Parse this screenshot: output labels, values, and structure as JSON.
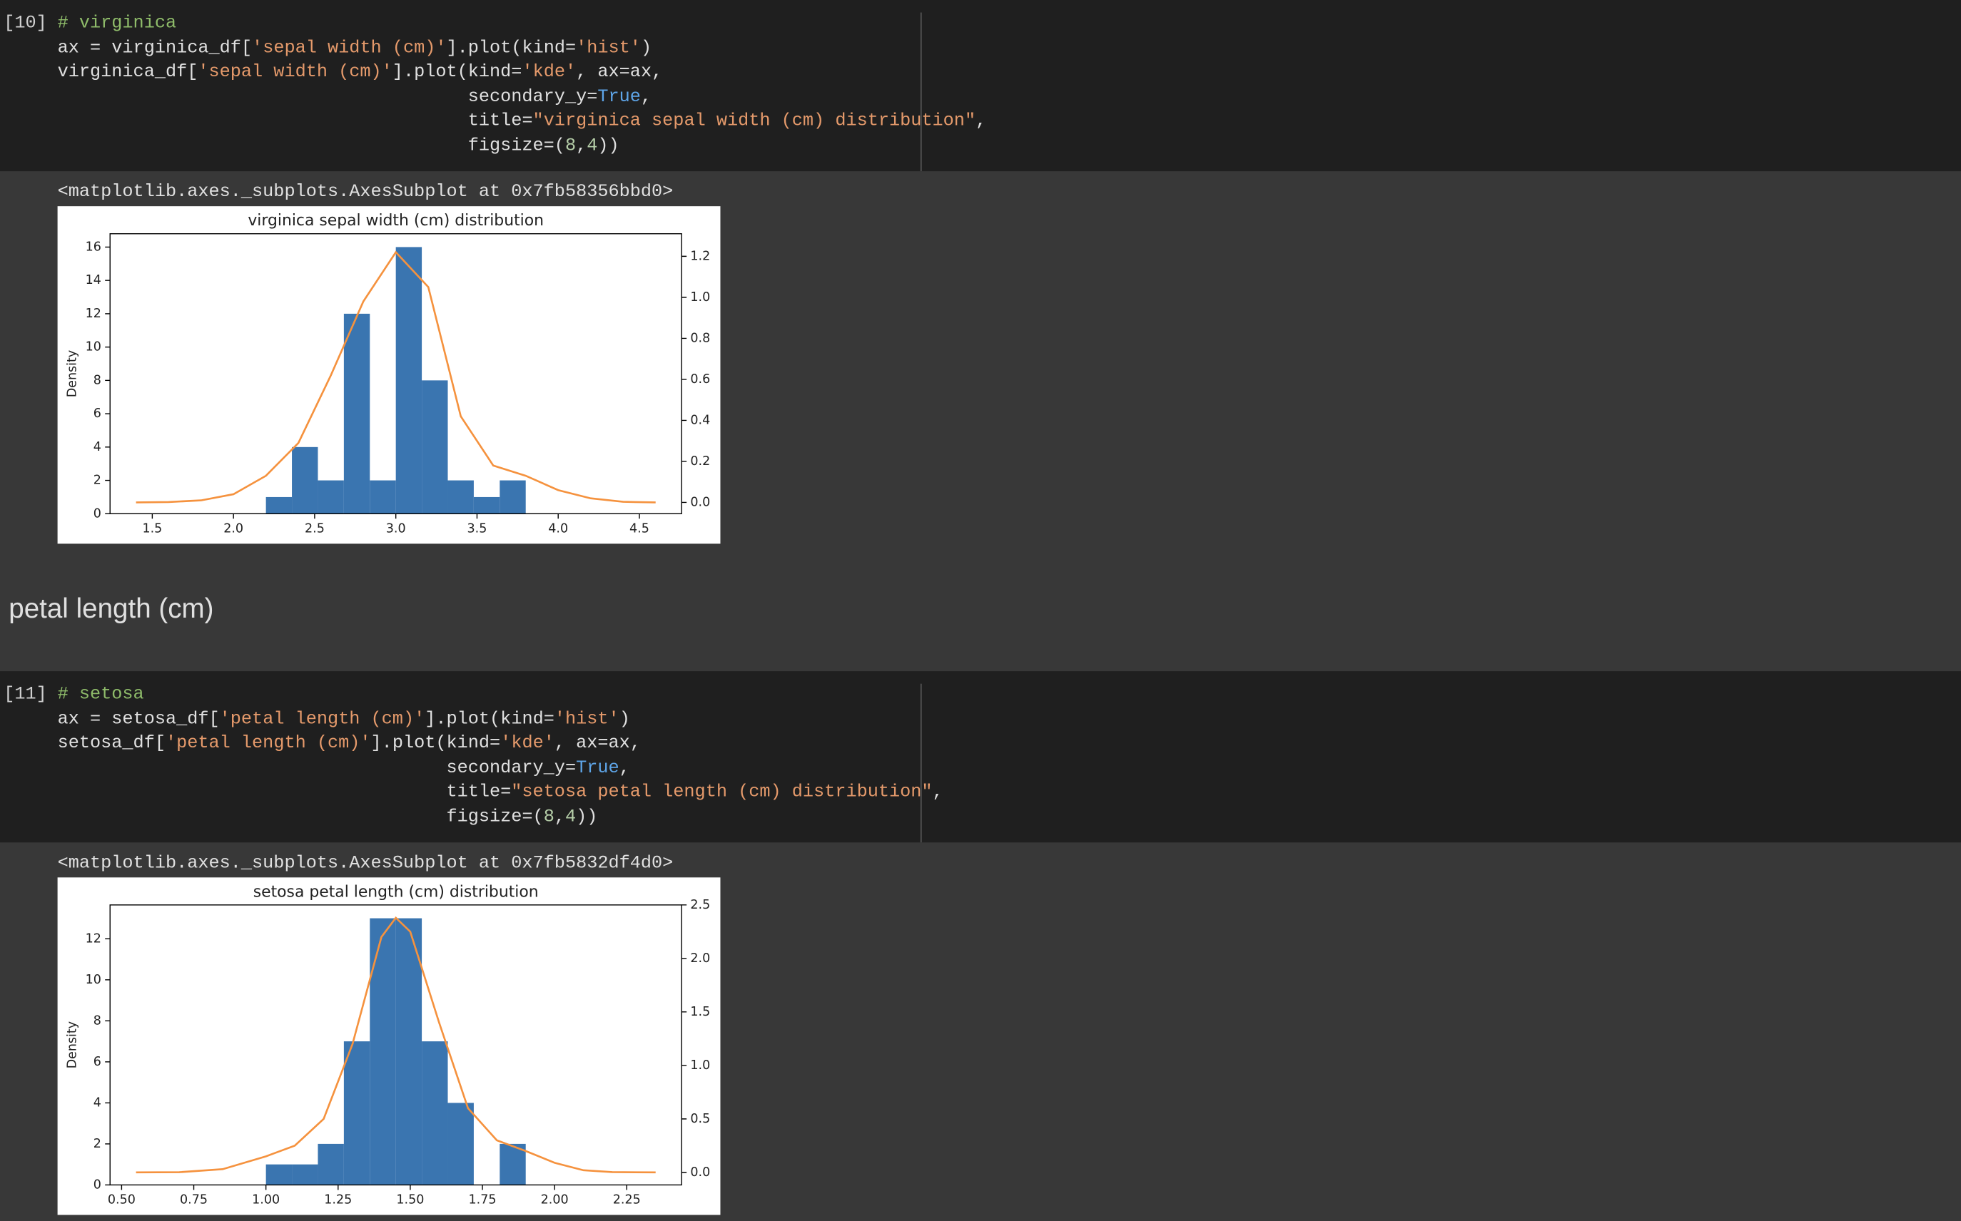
{
  "cells": [
    {
      "prompt": "[10]",
      "lines": [
        [
          {
            "text": "# virginica",
            "color": "#8fbc6a"
          }
        ],
        [
          {
            "text": "ax = virginica_df[",
            "color": "#e0e0e0"
          },
          {
            "text": "'sepal width (cm)'",
            "color": "#e59a6b"
          },
          {
            "text": "].plot(kind=",
            "color": "#e0e0e0"
          },
          {
            "text": "'hist'",
            "color": "#e59a6b"
          },
          {
            "text": ")",
            "color": "#e0e0e0"
          }
        ],
        [
          {
            "text": "virginica_df[",
            "color": "#e0e0e0"
          },
          {
            "text": "'sepal width (cm)'",
            "color": "#e59a6b"
          },
          {
            "text": "].plot(kind=",
            "color": "#e0e0e0"
          },
          {
            "text": "'kde'",
            "color": "#e59a6b"
          },
          {
            "text": ", ax=ax,",
            "color": "#e0e0e0"
          }
        ],
        [
          {
            "text": "                                      secondary_y=",
            "color": "#e0e0e0"
          },
          {
            "text": "True",
            "color": "#5ea5e8"
          },
          {
            "text": ",",
            "color": "#e0e0e0"
          }
        ],
        [
          {
            "text": "                                      title=",
            "color": "#e0e0e0"
          },
          {
            "text": "\"virginica sepal width (cm) distribution\"",
            "color": "#e59a6b"
          },
          {
            "text": ",",
            "color": "#e0e0e0"
          }
        ],
        [
          {
            "text": "                                      figsize=(",
            "color": "#e0e0e0"
          },
          {
            "text": "8",
            "color": "#b5cea8"
          },
          {
            "text": ",",
            "color": "#e0e0e0"
          },
          {
            "text": "4",
            "color": "#b5cea8"
          },
          {
            "text": "))",
            "color": "#e0e0e0"
          }
        ]
      ],
      "output": "<matplotlib.axes._subplots.AxesSubplot at 0x7fb58356bbd0>"
    },
    {
      "prompt": "[11]",
      "lines": [
        [
          {
            "text": "# setosa",
            "color": "#8fbc6a"
          }
        ],
        [
          {
            "text": "ax = setosa_df[",
            "color": "#e0e0e0"
          },
          {
            "text": "'petal length (cm)'",
            "color": "#e59a6b"
          },
          {
            "text": "].plot(kind=",
            "color": "#e0e0e0"
          },
          {
            "text": "'hist'",
            "color": "#e59a6b"
          },
          {
            "text": ")",
            "color": "#e0e0e0"
          }
        ],
        [
          {
            "text": "setosa_df[",
            "color": "#e0e0e0"
          },
          {
            "text": "'petal length (cm)'",
            "color": "#e59a6b"
          },
          {
            "text": "].plot(kind=",
            "color": "#e0e0e0"
          },
          {
            "text": "'kde'",
            "color": "#e59a6b"
          },
          {
            "text": ", ax=ax,",
            "color": "#e0e0e0"
          }
        ],
        [
          {
            "text": "                                    secondary_y=",
            "color": "#e0e0e0"
          },
          {
            "text": "True",
            "color": "#5ea5e8"
          },
          {
            "text": ",",
            "color": "#e0e0e0"
          }
        ],
        [
          {
            "text": "                                    title=",
            "color": "#e0e0e0"
          },
          {
            "text": "\"setosa petal length (cm) distribution\"",
            "color": "#e59a6b"
          },
          {
            "text": ",",
            "color": "#e0e0e0"
          }
        ],
        [
          {
            "text": "                                    figsize=(",
            "color": "#e0e0e0"
          },
          {
            "text": "8",
            "color": "#b5cea8"
          },
          {
            "text": ",",
            "color": "#e0e0e0"
          },
          {
            "text": "4",
            "color": "#b5cea8"
          },
          {
            "text": "))",
            "color": "#e0e0e0"
          }
        ]
      ],
      "output": "<matplotlib.axes._subplots.AxesSubplot at 0x7fb5832df4d0>"
    }
  ],
  "heading": "petal length (cm)",
  "chart_data": [
    {
      "type": "histogram",
      "title": "virginica sepal width (cm) distribution",
      "y_label": "Density",
      "bins": [
        2.2,
        2.36,
        2.52,
        2.68,
        2.84,
        3.0,
        3.16,
        3.32,
        3.48,
        3.64,
        3.8
      ],
      "counts": [
        1,
        4,
        2,
        12,
        2,
        16,
        8,
        2,
        1,
        2
      ],
      "color": "#3a75b0",
      "series": [
        {
          "color": "#f5923e",
          "axis": "y2",
          "x": [
            1.4,
            1.6,
            1.8,
            2.0,
            2.2,
            2.4,
            2.6,
            2.8,
            3.0,
            3.2,
            3.4,
            3.6,
            3.8,
            4.0,
            4.2,
            4.4,
            4.6
          ],
          "values": [
            0.0,
            0.002,
            0.01,
            0.04,
            0.13,
            0.29,
            0.62,
            0.98,
            1.22,
            1.05,
            0.42,
            0.18,
            0.13,
            0.06,
            0.02,
            0.003,
            0.0
          ]
        }
      ],
      "xlim": [
        1.24,
        4.76
      ],
      "xticks": [
        1.5,
        {
          "value": 2,
          "label": "2.0"
        },
        2.5,
        {
          "value": 3,
          "label": "3.0"
        },
        3.5,
        {
          "value": 4,
          "label": "4.0"
        },
        4.5
      ],
      "ylim": [
        0,
        16.8
      ],
      "yticks": [
        0,
        2,
        4,
        6,
        8,
        10,
        12,
        14,
        16
      ],
      "y2lim": [
        -0.055,
        1.31
      ],
      "y2ticks": [
        {
          "value": 0,
          "label": "0.0"
        },
        0.2,
        0.4,
        0.6,
        0.8,
        {
          "value": 1,
          "label": "1.0"
        },
        1.2
      ]
    },
    {
      "type": "histogram",
      "title": "setosa petal length (cm) distribution",
      "y_label": "Density",
      "bins": [
        1.0,
        1.09,
        1.18,
        1.27,
        1.36,
        1.45,
        1.54,
        1.63,
        1.72,
        1.81,
        1.9
      ],
      "counts": [
        1,
        1,
        2,
        7,
        13,
        13,
        7,
        4,
        0,
        2
      ],
      "color": "#3a75b0",
      "series": [
        {
          "color": "#f5923e",
          "axis": "y2",
          "x": [
            0.55,
            0.7,
            0.85,
            1.0,
            1.1,
            1.2,
            1.3,
            1.4,
            1.45,
            1.5,
            1.6,
            1.7,
            1.8,
            1.9,
            2.0,
            2.1,
            2.2,
            2.35
          ],
          "values": [
            0.0,
            0.002,
            0.03,
            0.15,
            0.25,
            0.5,
            1.2,
            2.2,
            2.38,
            2.25,
            1.4,
            0.6,
            0.3,
            0.2,
            0.09,
            0.02,
            0.003,
            0.0
          ]
        }
      ],
      "xlim": [
        0.46,
        2.44
      ],
      "xticks": [
        {
          "value": 0.5,
          "label": "0.50"
        },
        0.75,
        {
          "value": 1,
          "label": "1.00"
        },
        1.25,
        {
          "value": 1.5,
          "label": "1.50"
        },
        1.75,
        {
          "value": 2,
          "label": "2.00"
        },
        2.25
      ],
      "ylim": [
        0,
        13.65
      ],
      "yticks": [
        0,
        2,
        4,
        6,
        8,
        10,
        12
      ],
      "y2lim": [
        -0.117,
        2.5
      ],
      "y2ticks": [
        {
          "value": 0,
          "label": "0.0"
        },
        0.5,
        {
          "value": 1,
          "label": "1.0"
        },
        1.5,
        {
          "value": 2,
          "label": "2.0"
        },
        2.5
      ]
    }
  ]
}
